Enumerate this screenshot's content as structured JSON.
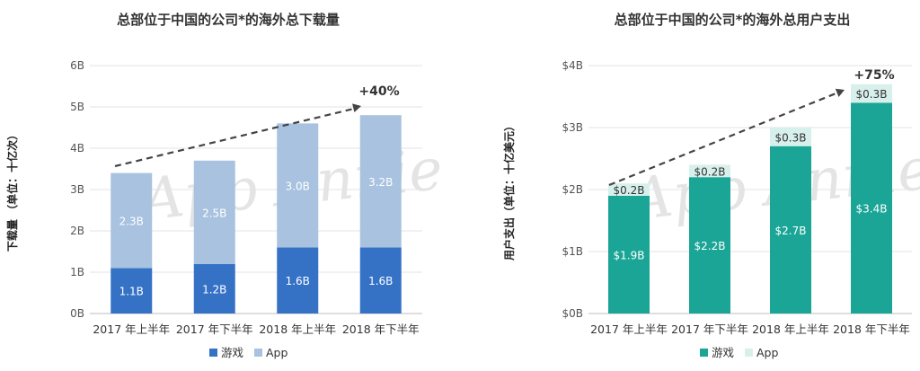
{
  "watermark": "App Annie",
  "colors": {
    "game_left": "#3572c6",
    "app_left": "#a8c2e0",
    "game_right": "#1aa596",
    "app_right": "#d8f0ec",
    "grid": "#e3e3e3",
    "axis": "#bdbdbd",
    "arrow": "#444444"
  },
  "legend": {
    "game": "游戏",
    "app": "App"
  },
  "chart_data": [
    {
      "type": "bar",
      "stacked": true,
      "title": "总部位于中国的公司*的海外总下载量",
      "ylabel": "下载量 （单位：十亿次）",
      "categories": [
        "2017 年上半年",
        "2017 年下半年",
        "2018 年上半年",
        "2018 年下半年"
      ],
      "series": [
        {
          "name": "游戏",
          "values": [
            1.1,
            1.2,
            1.6,
            1.6
          ],
          "labels": [
            "1.1B",
            "1.2B",
            "1.6B",
            "1.6B"
          ]
        },
        {
          "name": "App",
          "values": [
            2.3,
            2.5,
            3.0,
            3.2
          ],
          "labels": [
            "2.3B",
            "2.5B",
            "3.0B",
            "3.2B"
          ]
        }
      ],
      "ylim": [
        0,
        6
      ],
      "yticks": [
        0,
        1,
        2,
        3,
        4,
        5,
        6
      ],
      "ytick_labels": [
        "0B",
        "1B",
        "2B",
        "3B",
        "4B",
        "5B",
        "6B"
      ],
      "growth_label": "+40%",
      "grid": true,
      "legend_position": "bottom"
    },
    {
      "type": "bar",
      "stacked": true,
      "title": "总部位于中国的公司*的海外总用户支出",
      "ylabel": "用户支出（单位：十亿美元）",
      "categories": [
        "2017 年上半年",
        "2017 年下半年",
        "2018 年上半年",
        "2018 年下半年"
      ],
      "series": [
        {
          "name": "游戏",
          "values": [
            1.9,
            2.2,
            2.7,
            3.4
          ],
          "labels": [
            "$1.9B",
            "$2.2B",
            "$2.7B",
            "$3.4B"
          ]
        },
        {
          "name": "App",
          "values": [
            0.2,
            0.2,
            0.3,
            0.3
          ],
          "labels": [
            "$0.2B",
            "$0.2B",
            "$0.3B",
            "$0.3B"
          ]
        }
      ],
      "ylim": [
        0,
        4
      ],
      "yticks": [
        0,
        1,
        2,
        3,
        4
      ],
      "ytick_labels": [
        "$0B",
        "$1B",
        "$2B",
        "$3B",
        "$4B"
      ],
      "growth_label": "+75%",
      "grid": true,
      "legend_position": "bottom"
    }
  ]
}
